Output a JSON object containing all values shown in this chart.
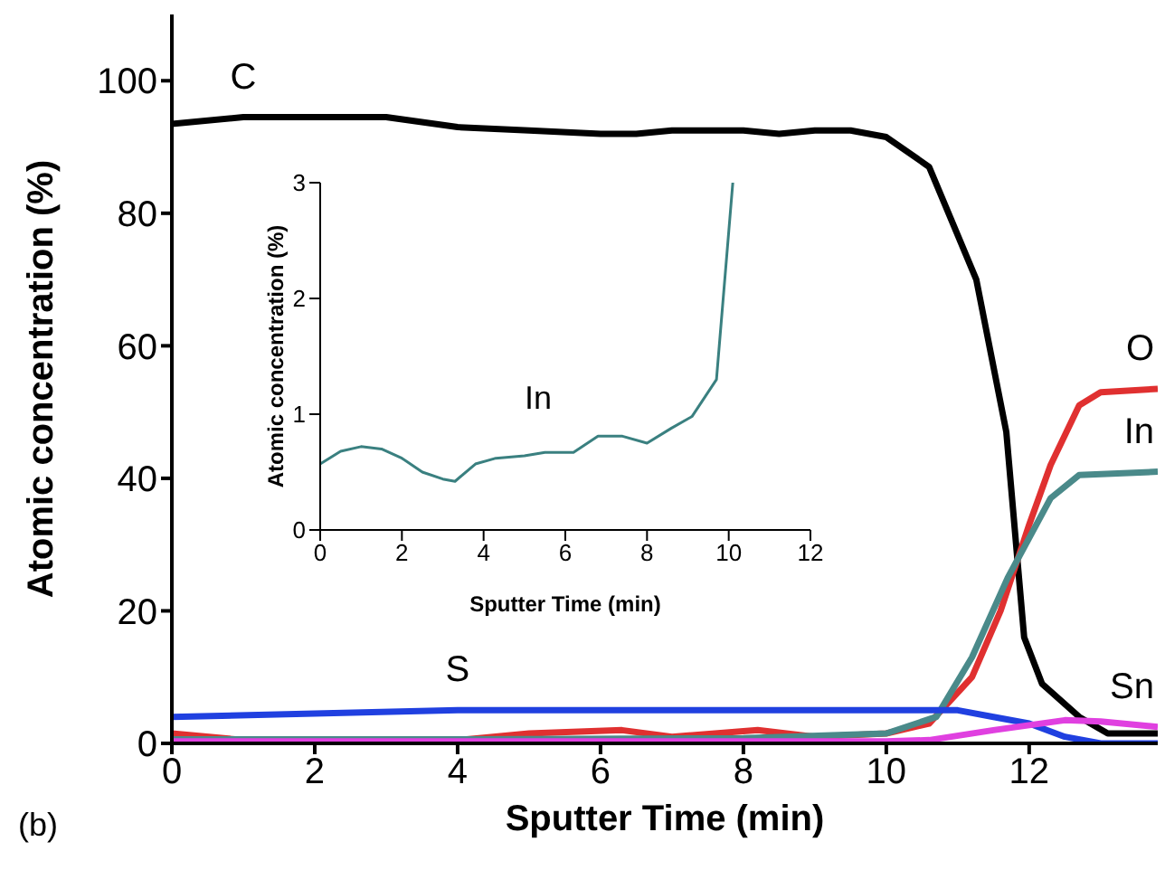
{
  "chart_data": [
    {
      "type": "line",
      "xlabel": "Sputter Time (min)",
      "ylabel": "Atomic concentration (%)",
      "xlim": [
        0,
        13.8
      ],
      "ylim": [
        0,
        110
      ],
      "xticks": [
        0,
        2,
        4,
        6,
        8,
        10,
        12
      ],
      "yticks": [
        0,
        20,
        40,
        60,
        80,
        100
      ],
      "marker": "none",
      "line_style": "solid",
      "series": [
        {
          "name": "C",
          "color": "#000000",
          "x": [
            0,
            1,
            3,
            4,
            5,
            6,
            6.5,
            7,
            8,
            8.5,
            9,
            9.5,
            10,
            10.6,
            11.26,
            11.68,
            11.93,
            12.18,
            12.7,
            13.1,
            13.8
          ],
          "values": [
            93.5,
            94.5,
            94.5,
            93,
            92.5,
            92,
            92,
            92.5,
            92.5,
            92,
            92.5,
            92.5,
            91.5,
            87,
            70,
            47,
            16,
            9,
            4,
            1.5,
            1.5
          ]
        },
        {
          "name": "O",
          "color": "#e03030",
          "x": [
            0,
            1,
            4,
            5,
            6.3,
            7,
            8.2,
            9,
            10,
            10.6,
            11.2,
            11.6,
            12,
            12.3,
            12.7,
            13,
            13.8
          ],
          "values": [
            1.5,
            0.5,
            0.5,
            1.5,
            2,
            1,
            2,
            1,
            1.5,
            3,
            10,
            20,
            33,
            42,
            51,
            53,
            53.5
          ]
        },
        {
          "name": "In",
          "color": "#4a8a8a",
          "x": [
            0,
            4,
            8,
            10,
            10.7,
            11.2,
            11.7,
            12,
            12.3,
            12.7,
            13.8
          ],
          "values": [
            0.6,
            0.6,
            0.8,
            1.5,
            4,
            13,
            25,
            31,
            37,
            40.5,
            41
          ]
        },
        {
          "name": "S",
          "color": "#2040e0",
          "x": [
            0,
            2,
            4,
            10,
            11,
            11.5,
            12,
            12.5,
            13,
            13.8
          ],
          "values": [
            4,
            4.5,
            5,
            5,
            5,
            4,
            3,
            1,
            0,
            0
          ]
        },
        {
          "name": "Sn",
          "color": "#e040e0",
          "x": [
            0,
            10,
            10.6,
            11.5,
            12.5,
            13,
            13.8
          ],
          "values": [
            0.3,
            0.3,
            0.5,
            2,
            3.5,
            3.3,
            2.5
          ]
        }
      ],
      "annotations": [
        "(b)"
      ]
    },
    {
      "type": "line",
      "xlabel": "Sputter Time (min)",
      "ylabel": "Atomic concentration (%)",
      "xlim": [
        0,
        12
      ],
      "ylim": [
        0,
        3
      ],
      "xticks": [
        0,
        2,
        4,
        6,
        8,
        10,
        12
      ],
      "yticks": [
        0,
        1,
        2,
        3
      ],
      "marker": "none",
      "line_style": "solid",
      "series": [
        {
          "color": "#3a8080",
          "x": [
            0,
            0.5,
            1,
            1.5,
            2,
            2.5,
            3,
            3.3,
            3.8,
            4.3,
            5,
            5.5,
            6.2,
            6.8,
            7.4,
            8,
            8.6,
            9.1,
            9.7,
            10.1
          ],
          "values": [
            0.57,
            0.68,
            0.72,
            0.7,
            0.62,
            0.5,
            0.44,
            0.42,
            0.57,
            0.62,
            0.64,
            0.67,
            0.67,
            0.81,
            0.81,
            0.75,
            0.88,
            0.98,
            1.3,
            3
          ]
        }
      ],
      "annotations": [
        "In"
      ]
    }
  ]
}
